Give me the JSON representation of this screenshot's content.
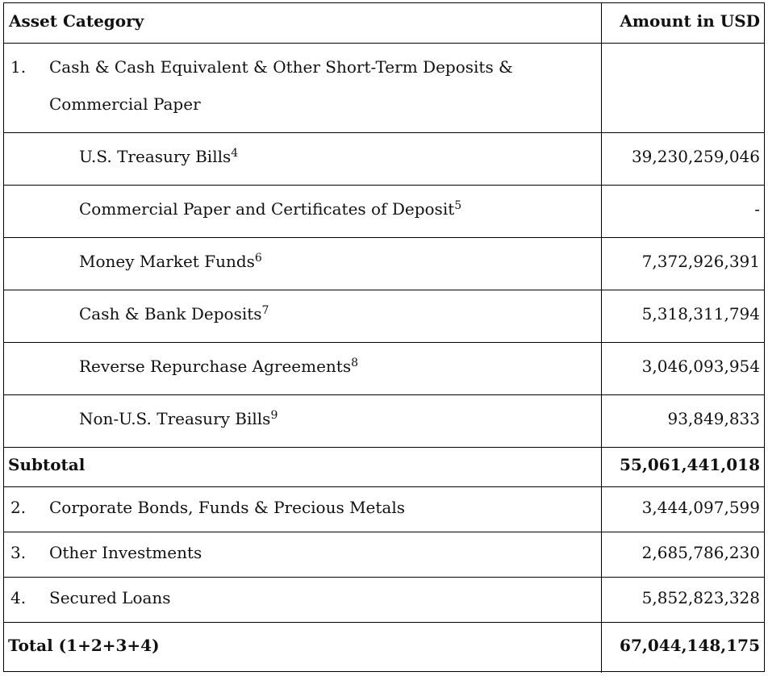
{
  "table": {
    "header": [
      "Asset Category",
      "Amount in USD"
    ],
    "section": {
      "number": "1.",
      "label": "Cash & Cash Equivalent & Other Short-Term Deposits & Commercial Paper",
      "items": [
        {
          "label": "U.S. Treasury Bills",
          "note": "4",
          "amount": "39,230,259,046"
        },
        {
          "label": "Commercial Paper and Certificates of Deposit",
          "note": "5",
          "amount": "-"
        },
        {
          "label": "Money Market Funds",
          "note": "6",
          "amount": "7,372,926,391"
        },
        {
          "label": "Cash & Bank Deposits",
          "note": "7",
          "amount": "5,318,311,794"
        },
        {
          "label": "Reverse Repurchase Agreements",
          "note": "8",
          "amount": "3,046,093,954"
        },
        {
          "label": "Non-U.S. Treasury Bills",
          "note": "9",
          "amount": "93,849,833"
        }
      ]
    },
    "subtotal": {
      "label": "Subtotal",
      "amount": "55,061,441,018"
    },
    "others": [
      {
        "number": "2.",
        "label": "Corporate Bonds, Funds & Precious Metals",
        "amount": "3,444,097,599"
      },
      {
        "number": "3.",
        "label": "Other Investments",
        "amount": "2,685,786,230"
      },
      {
        "number": "4.",
        "label": "Secured Loans",
        "amount": "5,852,823,328"
      }
    ],
    "total": {
      "label": "Total (1+2+3+4)",
      "amount": "67,044,148,175"
    }
  }
}
